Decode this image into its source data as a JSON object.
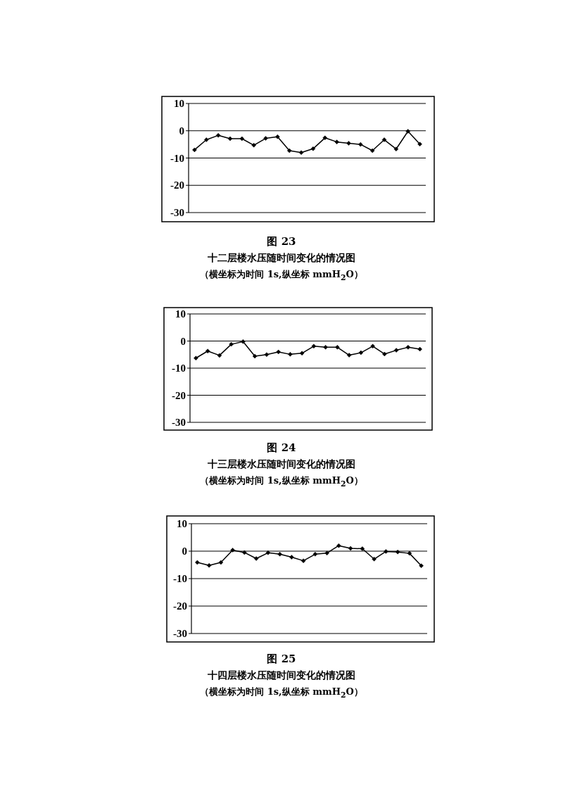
{
  "chart_data": [
    {
      "type": "line",
      "title": "图 23",
      "subtitle": "十二层楼水压随时间变化的情况图",
      "annotations": [
        "（横坐标为时间 1s,纵坐标 mmH$_{2}$O）"
      ],
      "categories": [
        null,
        null,
        null,
        null,
        null,
        null,
        null,
        null,
        null,
        null,
        null,
        null,
        null,
        null,
        null,
        null,
        null,
        null,
        null,
        null
      ],
      "color": "#000000",
      "marker": "diamond",
      "grid": "y",
      "ylim": [
        -30,
        10
      ],
      "yticks": [
        -30,
        -20,
        -10,
        0,
        10
      ],
      "values": [
        -7.0,
        -3.3,
        -1.7,
        -2.9,
        -2.9,
        -5.3,
        -2.8,
        -2.2,
        -7.3,
        -8.0,
        -6.6,
        -2.6,
        -4.1,
        -4.6,
        -5.0,
        -7.3,
        -3.3,
        -6.7,
        -0.2,
        -4.9
      ]
    },
    {
      "type": "line",
      "title": "图 24",
      "subtitle": "十三层楼水压随时间变化的情况图",
      "annotations": [
        "（横坐标为时间 1s,纵坐标 mmH$_{2}$O）"
      ],
      "categories": [
        null,
        null,
        null,
        null,
        null,
        null,
        null,
        null,
        null,
        null,
        null,
        null,
        null,
        null,
        null,
        null,
        null,
        null,
        null,
        null
      ],
      "color": "#000000",
      "marker": "diamond",
      "grid": "y",
      "ylim": [
        -30,
        10
      ],
      "yticks": [
        -30,
        -20,
        -10,
        0,
        10
      ],
      "values": [
        -6.3,
        -3.7,
        -5.3,
        -1.2,
        -0.2,
        -5.6,
        -5.0,
        -4.0,
        -4.9,
        -4.5,
        -1.9,
        -2.3,
        -2.3,
        -5.2,
        -4.3,
        -1.9,
        -4.8,
        -3.4,
        -2.3,
        -3.0
      ]
    },
    {
      "type": "line",
      "title": "图 25",
      "subtitle": "十四层楼水压随时间变化的情况图",
      "annotations": [
        "（横坐标为时间 1s,纵坐标 mmH$_{2}$O）"
      ],
      "categories": [
        null,
        null,
        null,
        null,
        null,
        null,
        null,
        null,
        null,
        null,
        null,
        null,
        null,
        null,
        null,
        null,
        null,
        null,
        null,
        null
      ],
      "color": "#000000",
      "marker": "diamond",
      "grid": "y",
      "ylim": [
        -30,
        10
      ],
      "yticks": [
        -30,
        -20,
        -10,
        0,
        10
      ],
      "values": [
        -4.1,
        -5.2,
        -4.1,
        0.4,
        -0.5,
        -2.7,
        -0.6,
        -1.1,
        -2.2,
        -3.5,
        -1.1,
        -0.7,
        2.0,
        1.0,
        0.9,
        -2.9,
        -0.1,
        -0.3,
        -0.8,
        -5.3
      ]
    }
  ]
}
